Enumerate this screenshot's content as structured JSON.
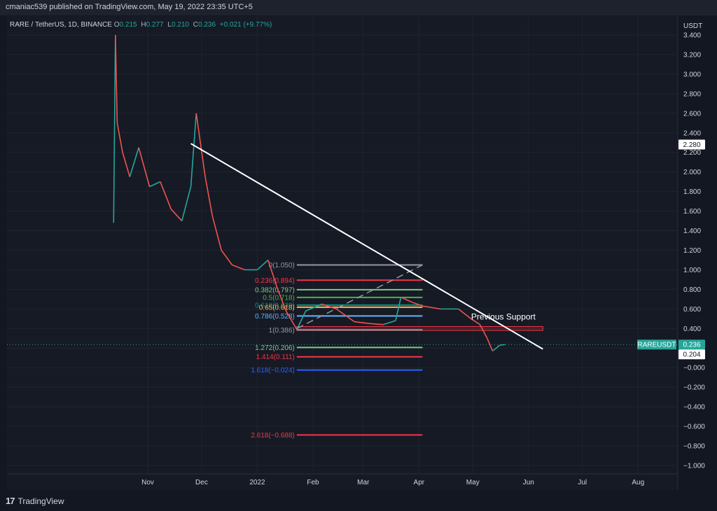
{
  "header": {
    "published_text": "cmaniac539 published on TradingView.com, May 19, 2022 23:35 UTC+5"
  },
  "legend": {
    "symbol": "RARE / TetherUS, 1D, BINANCE",
    "open_key": "O",
    "open": "0.215",
    "high_key": "H",
    "high": "0.277",
    "low_key": "L",
    "low": "0.210",
    "close_key": "C",
    "close": "0.236",
    "change": "+0.021 (+9.77%)"
  },
  "footer": {
    "logo_text": "TradingView"
  },
  "chart_data": {
    "type": "line",
    "currency_label": "USDT",
    "y_ticks": [
      "3.400",
      "3.200",
      "3.000",
      "2.800",
      "2.600",
      "2.400",
      "2.200",
      "2.000",
      "1.800",
      "1.600",
      "1.400",
      "1.200",
      "1.000",
      "0.800",
      "0.600",
      "0.400",
      "0.200",
      "−0.000",
      "−0.200",
      "−0.400",
      "−0.600",
      "−0.800",
      "−1.000"
    ],
    "ylim": [
      -1.0,
      3.4
    ],
    "x_ticks": [
      "Nov",
      "Dec",
      "2022",
      "Feb",
      "Mar",
      "Apr",
      "May",
      "Jun",
      "Jul",
      "Aug"
    ],
    "price_path": [
      {
        "x": "2021-10-13",
        "y": 1.48
      },
      {
        "x": "2021-10-14",
        "y": 3.4
      },
      {
        "x": "2021-10-15",
        "y": 2.5
      },
      {
        "x": "2021-10-18",
        "y": 2.2
      },
      {
        "x": "2021-10-22",
        "y": 1.95
      },
      {
        "x": "2021-10-27",
        "y": 2.25
      },
      {
        "x": "2021-11-02",
        "y": 1.85
      },
      {
        "x": "2021-11-08",
        "y": 1.9
      },
      {
        "x": "2021-11-14",
        "y": 1.62
      },
      {
        "x": "2021-11-20",
        "y": 1.5
      },
      {
        "x": "2021-11-25",
        "y": 1.85
      },
      {
        "x": "2021-11-28",
        "y": 2.6
      },
      {
        "x": "2021-12-03",
        "y": 1.95
      },
      {
        "x": "2021-12-07",
        "y": 1.55
      },
      {
        "x": "2021-12-12",
        "y": 1.2
      },
      {
        "x": "2021-12-18",
        "y": 1.05
      },
      {
        "x": "2021-12-25",
        "y": 1.0
      },
      {
        "x": "2022-01-01",
        "y": 1.0
      },
      {
        "x": "2022-01-07",
        "y": 1.1
      },
      {
        "x": "2022-01-12",
        "y": 0.82
      },
      {
        "x": "2022-01-17",
        "y": 0.58
      },
      {
        "x": "2022-01-23",
        "y": 0.39
      },
      {
        "x": "2022-01-28",
        "y": 0.58
      },
      {
        "x": "2022-02-06",
        "y": 0.65
      },
      {
        "x": "2022-02-14",
        "y": 0.6
      },
      {
        "x": "2022-02-24",
        "y": 0.47
      },
      {
        "x": "2022-03-05",
        "y": 0.45
      },
      {
        "x": "2022-03-12",
        "y": 0.44
      },
      {
        "x": "2022-03-19",
        "y": 0.48
      },
      {
        "x": "2022-03-22",
        "y": 0.72
      },
      {
        "x": "2022-03-28",
        "y": 0.67
      },
      {
        "x": "2022-04-03",
        "y": 0.63
      },
      {
        "x": "2022-04-13",
        "y": 0.6
      },
      {
        "x": "2022-04-23",
        "y": 0.6
      },
      {
        "x": "2022-04-30",
        "y": 0.5
      },
      {
        "x": "2022-05-05",
        "y": 0.44
      },
      {
        "x": "2022-05-09",
        "y": 0.3
      },
      {
        "x": "2022-05-12",
        "y": 0.17
      },
      {
        "x": "2022-05-16",
        "y": 0.23
      },
      {
        "x": "2022-05-19",
        "y": 0.236
      }
    ],
    "price_color_up": "#26a69a",
    "price_color_down": "#ef5350",
    "trendline": {
      "start": {
        "x": "2021-11-25",
        "y": 2.29
      },
      "end": {
        "x": "2022-06-09",
        "y": 0.19
      },
      "color": "#ffffff"
    },
    "dashed_projection": {
      "start": {
        "x": "2022-01-23",
        "y": 0.4
      },
      "end": {
        "x": "2022-04-03",
        "y": 1.05
      },
      "color": "#9598a1"
    },
    "fib_levels": [
      {
        "label": "0(1.050)",
        "value": 1.05,
        "color": "#9598a1"
      },
      {
        "label": "0.236(0.894)",
        "value": 0.894,
        "color": "#f23645"
      },
      {
        "label": "0.382(0.797)",
        "value": 0.797,
        "color": "#81c784"
      },
      {
        "label": "0.5(0.718)",
        "value": 0.718,
        "color": "#4caf50"
      },
      {
        "label": "0.618(0.639)",
        "value": 0.639,
        "color": "#009688"
      },
      {
        "label": "0.65(0.618)",
        "value": 0.618,
        "color": "#ffb74d"
      },
      {
        "label": "0.786(0.528)",
        "value": 0.528,
        "color": "#64b5f6"
      },
      {
        "label": "1(0.386)",
        "value": 0.386,
        "color": "#9598a1"
      },
      {
        "label": "1.272(0.206)",
        "value": 0.206,
        "color": "#81c784"
      },
      {
        "label": "1.414(0.111)",
        "value": 0.111,
        "color": "#f23645"
      },
      {
        "label": "1.618(−0.024)",
        "value": -0.024,
        "color": "#2962ff"
      },
      {
        "label": "2.618(−0.688)",
        "value": -0.688,
        "color": "#f23645"
      }
    ],
    "fib_range": {
      "start": "2022-01-23",
      "end": "2022-04-03"
    },
    "support_zone": {
      "top": 0.42,
      "bottom": 0.38,
      "start": "2022-01-23",
      "end": "2022-06-09",
      "color": "#f23645"
    },
    "annotation": {
      "text": "Previous Support",
      "x": "2022-05-18",
      "y": 0.49
    },
    "current_price_line": {
      "value": 0.236,
      "color": "#26a69a"
    },
    "price_badges": [
      {
        "label": "2.280",
        "value": 2.28,
        "bg": "#ffffff",
        "fg": "#131722"
      },
      {
        "label": "0.236",
        "value": 0.236,
        "bg": "#26a69a",
        "fg": "#ffffff"
      },
      {
        "label": "0.204",
        "value": 0.204,
        "bg": "#ffffff",
        "fg": "#131722"
      }
    ],
    "symbol_badge": {
      "label": "RAREUSDT",
      "value": 0.236,
      "bg": "#26a69a",
      "fg": "#ffffff"
    }
  }
}
